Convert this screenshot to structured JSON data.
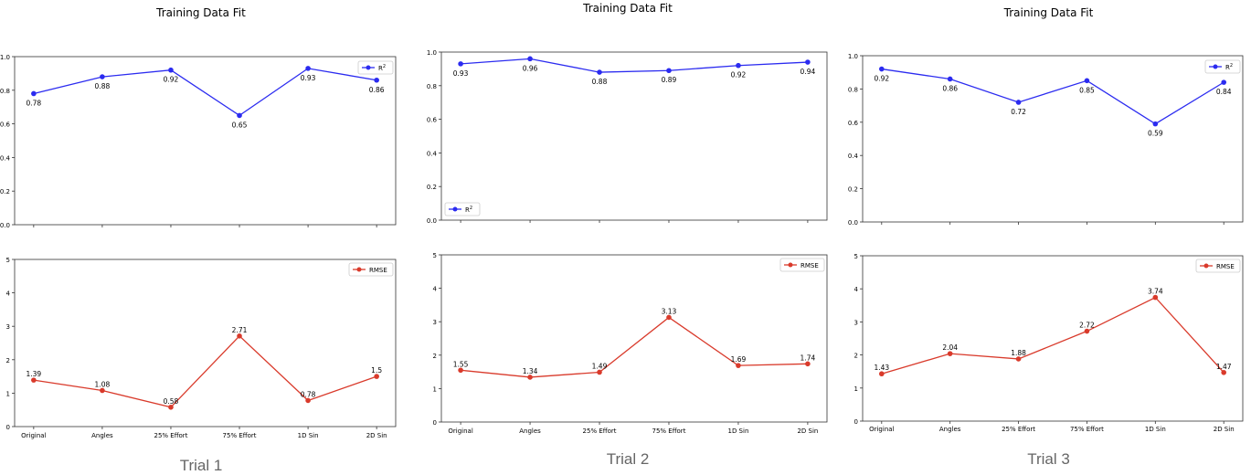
{
  "charts": [
    {
      "title": "Training Data Fit",
      "label": "Trial 1",
      "categories": [
        "Original",
        "Angles",
        "25% Effort",
        "75% Effort",
        "1D Sin",
        "2D Sin"
      ],
      "r2": [
        0.78,
        0.88,
        0.92,
        0.65,
        0.93,
        0.86
      ],
      "rmse": [
        1.39,
        1.08,
        0.58,
        2.71,
        0.78,
        1.5
      ],
      "r2_legend_pos": "top-right"
    },
    {
      "title": "Training Data Fit",
      "label": "Trial 2",
      "categories": [
        "Original",
        "Angles",
        "25% Effort",
        "75% Effort",
        "1D Sin",
        "2D Sin"
      ],
      "r2": [
        0.93,
        0.96,
        0.88,
        0.89,
        0.92,
        0.94
      ],
      "rmse": [
        1.55,
        1.34,
        1.49,
        3.13,
        1.69,
        1.74
      ],
      "r2_legend_pos": "bottom-left"
    },
    {
      "title": "Training Data Fit",
      "label": "Trial 3",
      "categories": [
        "Original",
        "Angles",
        "25% Effort",
        "75% Effort",
        "1D Sin",
        "2D Sin"
      ],
      "r2": [
        0.92,
        0.86,
        0.72,
        0.85,
        0.59,
        0.84
      ],
      "rmse": [
        1.43,
        2.04,
        1.88,
        2.72,
        3.74,
        1.47
      ],
      "r2_legend_pos": "top-right"
    }
  ],
  "legend": {
    "r2": "R",
    "r2_sup": "2",
    "rmse": "RMSE"
  },
  "colors": {
    "r2": "#2b2bf0",
    "rmse": "#d93a2b",
    "axis": "#333333"
  },
  "chart_data": [
    {
      "type": "line",
      "title": "Training Data Fit",
      "subtitle": "Trial 1",
      "categories": [
        "Original",
        "Angles",
        "25% Effort",
        "75% Effort",
        "1D Sin",
        "2D Sin"
      ],
      "series": [
        {
          "name": "R²",
          "values": [
            0.78,
            0.88,
            0.92,
            0.65,
            0.93,
            0.86
          ],
          "ylim": [
            0,
            1.0
          ]
        },
        {
          "name": "RMSE",
          "values": [
            1.39,
            1.08,
            0.58,
            2.71,
            0.78,
            1.5
          ],
          "ylim": [
            0,
            5
          ]
        }
      ]
    },
    {
      "type": "line",
      "title": "Training Data Fit",
      "subtitle": "Trial 2",
      "categories": [
        "Original",
        "Angles",
        "25% Effort",
        "75% Effort",
        "1D Sin",
        "2D Sin"
      ],
      "series": [
        {
          "name": "R²",
          "values": [
            0.93,
            0.96,
            0.88,
            0.89,
            0.92,
            0.94
          ],
          "ylim": [
            0,
            1.0
          ]
        },
        {
          "name": "RMSE",
          "values": [
            1.55,
            1.34,
            1.49,
            3.13,
            1.69,
            1.74
          ],
          "ylim": [
            0,
            5
          ]
        }
      ]
    },
    {
      "type": "line",
      "title": "Training Data Fit",
      "subtitle": "Trial 3",
      "categories": [
        "Original",
        "Angles",
        "25% Effort",
        "75% Effort",
        "1D Sin",
        "2D Sin"
      ],
      "series": [
        {
          "name": "R²",
          "values": [
            0.92,
            0.86,
            0.72,
            0.85,
            0.59,
            0.84
          ],
          "ylim": [
            0,
            1.0
          ]
        },
        {
          "name": "RMSE",
          "values": [
            1.43,
            2.04,
            1.88,
            2.72,
            3.74,
            1.47
          ],
          "ylim": [
            0,
            5
          ]
        }
      ]
    }
  ]
}
